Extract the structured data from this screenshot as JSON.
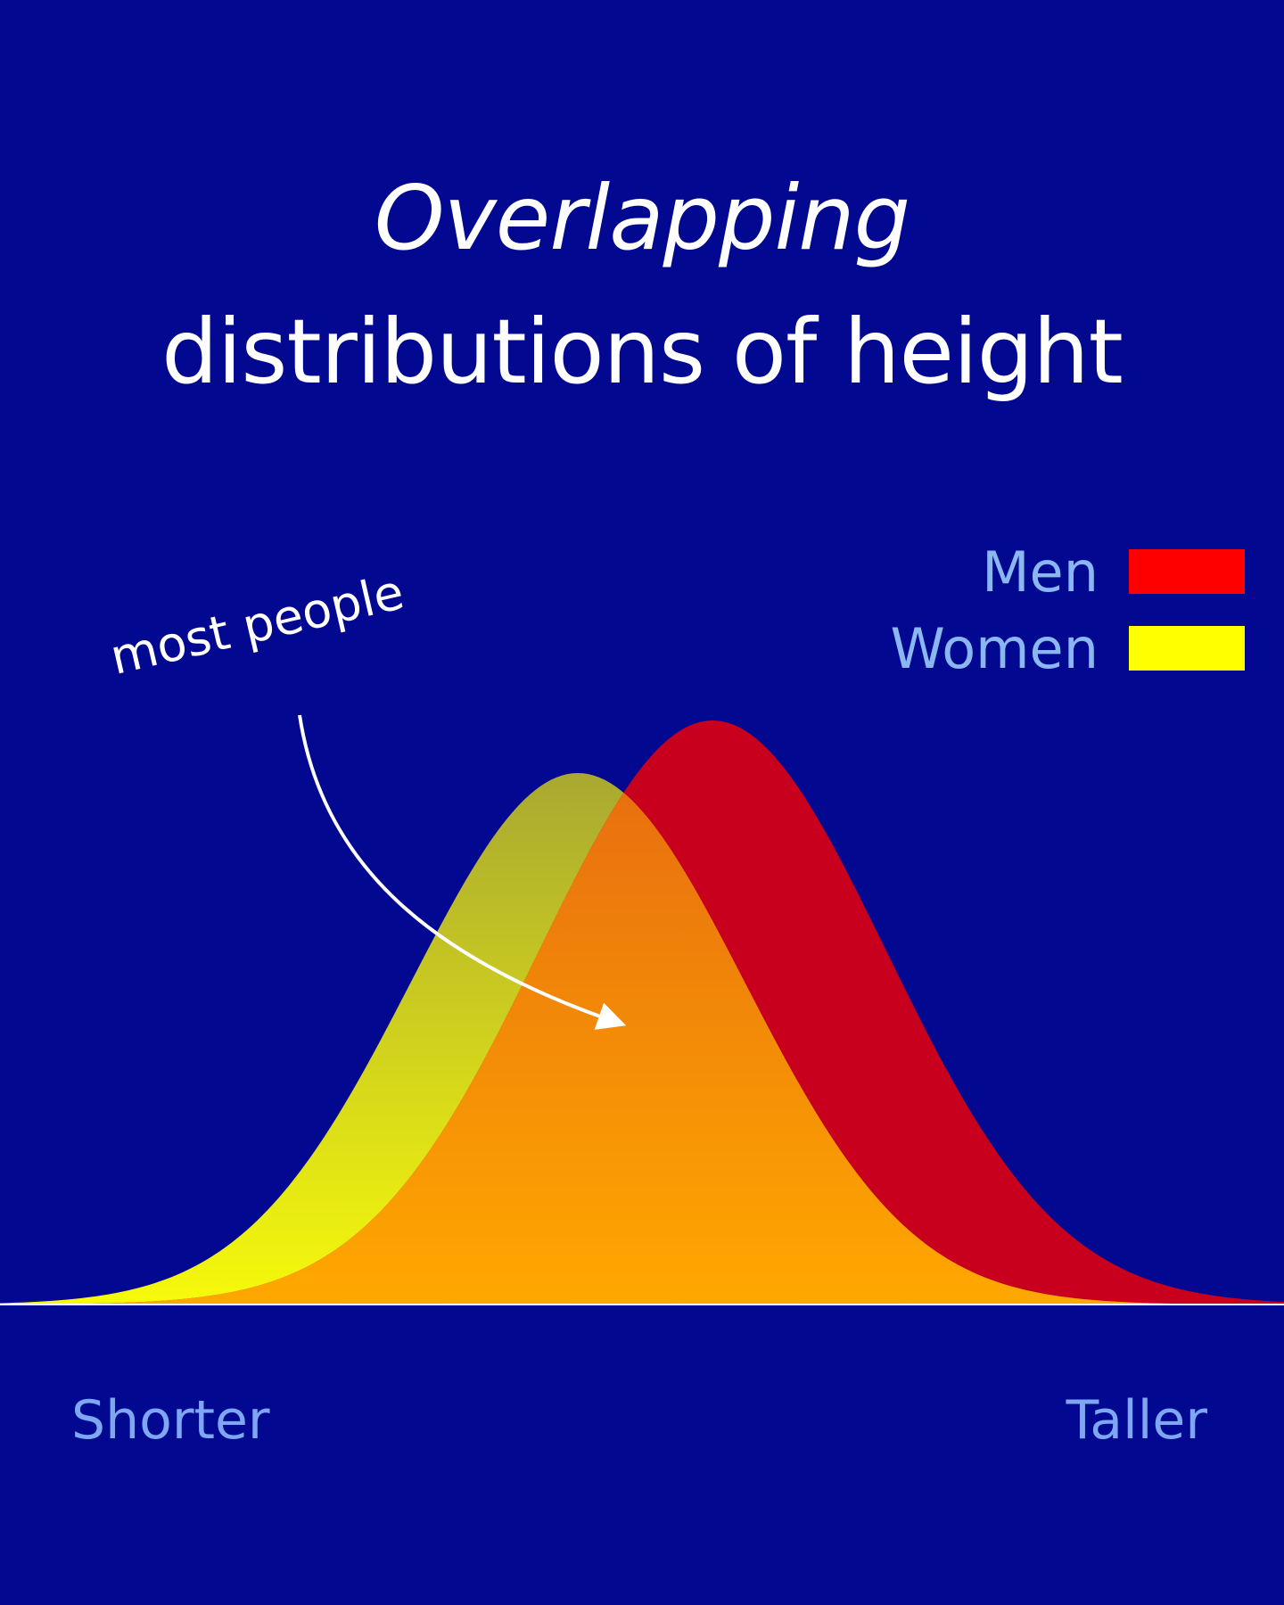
{
  "title": {
    "line1": "Overlapping",
    "line2": "distributions of height"
  },
  "annotation": "most people",
  "legend": [
    {
      "label": "Men",
      "color": "#ff0000"
    },
    {
      "label": "Women",
      "color": "#ffff00"
    }
  ],
  "axis": {
    "left_label": "Shorter",
    "right_label": "Taller"
  },
  "colors": {
    "background": "#02088f",
    "men_fill": "#c8001e",
    "women_fill_top": "#a9a831",
    "women_fill_bottom": "#f6fa0a",
    "overlap_fill_top": "#e56811",
    "overlap_fill_bottom": "#ffa800",
    "baseline": "#ffffff"
  },
  "chart_data": {
    "type": "area",
    "title": "Overlapping distributions of height",
    "xlabel": "",
    "ylabel": "",
    "x_range_labels": [
      "Shorter",
      "Taller"
    ],
    "legend_position": "top-right",
    "grid": false,
    "series": [
      {
        "name": "Women",
        "distribution": "normal",
        "mean": 0.45,
        "sd": 0.13,
        "relative_peak": 0.91
      },
      {
        "name": "Men",
        "distribution": "normal",
        "mean": 0.555,
        "sd": 0.135,
        "relative_peak": 1.0
      }
    ],
    "annotation": {
      "text": "most people",
      "points_to": "overlap region"
    }
  }
}
